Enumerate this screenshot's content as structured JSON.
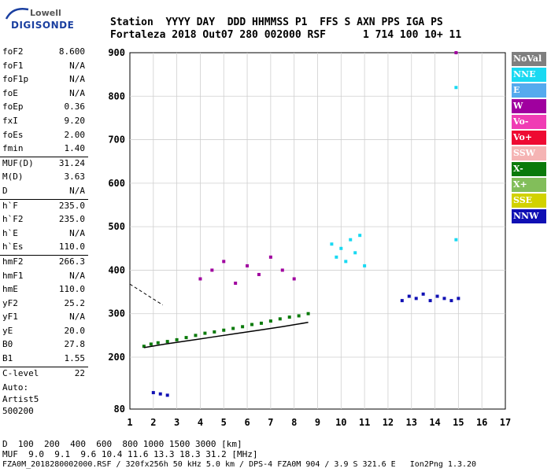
{
  "logo": {
    "line1": "Lowell",
    "line2": "DIGISONDE"
  },
  "header": {
    "row1": [
      "Station",
      "YYYY DAY",
      "DDD HHMMSS",
      "P1",
      "FFS S",
      "AXN",
      "PPS",
      "IGA",
      "PS"
    ],
    "row2": [
      "Fortaleza",
      "2018 Out07",
      "280 002000",
      "RSF",
      "1",
      "714",
      "100",
      "10+",
      "11"
    ]
  },
  "params": [
    {
      "name": "foF2",
      "value": "8.600"
    },
    {
      "name": "foF1",
      "value": "N/A"
    },
    {
      "name": "foF1p",
      "value": "N/A"
    },
    {
      "name": "foE",
      "value": "N/A"
    },
    {
      "name": "foEp",
      "value": "0.36"
    },
    {
      "name": "fxI",
      "value": "9.20"
    },
    {
      "name": "foEs",
      "value": "2.00"
    },
    {
      "name": "fmin",
      "value": "1.40"
    },
    {
      "name": "MUF(D)",
      "value": "31.24",
      "sep": true
    },
    {
      "name": "M(D)",
      "value": "3.63"
    },
    {
      "name": "D",
      "value": "N/A"
    },
    {
      "name": "h`F",
      "value": "235.0",
      "sep": true
    },
    {
      "name": "h`F2",
      "value": "235.0"
    },
    {
      "name": "h`E",
      "value": "N/A"
    },
    {
      "name": "h`Es",
      "value": "110.0"
    },
    {
      "name": "hmF2",
      "value": "266.3",
      "sep": true
    },
    {
      "name": "hmF1",
      "value": "N/A"
    },
    {
      "name": "hmE",
      "value": "110.0"
    },
    {
      "name": "yF2",
      "value": "25.2"
    },
    {
      "name": "yF1",
      "value": "N/A"
    },
    {
      "name": "yE",
      "value": "20.0"
    },
    {
      "name": "B0",
      "value": "27.8"
    },
    {
      "name": "B1",
      "value": "1.55"
    },
    {
      "name": "C-level",
      "value": "22",
      "sep": true
    }
  ],
  "autoscaling": {
    "line1": "Auto:",
    "line2": "Artist5",
    "line3": "500200"
  },
  "legend": [
    {
      "label": "NoVal",
      "color": "#7f7f7f"
    },
    {
      "label": "NNE",
      "color": "#19d9f2"
    },
    {
      "label": "E",
      "color": "#55aaee"
    },
    {
      "label": "W",
      "color": "#a0009f"
    },
    {
      "label": "Vo-",
      "color": "#f03cb4"
    },
    {
      "label": "Vo+",
      "color": "#ee0a32"
    },
    {
      "label": "SSW",
      "color": "#f5b4b4"
    },
    {
      "label": "X-",
      "color": "#0a7a0a"
    },
    {
      "label": "X+",
      "color": "#82be5a"
    },
    {
      "label": "SSE",
      "color": "#d2d200"
    },
    {
      "label": "NNW",
      "color": "#1010b4"
    }
  ],
  "footer": {
    "d_label": "D",
    "d_values": "  100  200  400  600  800 1000 1500 3000 [km]",
    "muf_label": "MUF",
    "muf_values": "  9.0  9.1  9.6 10.4 11.6 13.3 18.3 31.2 [MHz]",
    "info": "FZA0M_2018280002000.RSF / 320fx256h 50 kHz 5.0 km / DPS-4 FZA0M 904 / 3.9 S 321.6 E   Ion2Png 1.3.20"
  },
  "chart_data": {
    "type": "scatter",
    "title": "",
    "xlabel": "",
    "ylabel": "",
    "xlim": [
      1,
      17
    ],
    "ylim": [
      80,
      900
    ],
    "y_scale": "piecewise-linear",
    "x_ticks": [
      1,
      2,
      3,
      4,
      5,
      6,
      7,
      8,
      9,
      10,
      11,
      12,
      13,
      14,
      15,
      16,
      17
    ],
    "y_ticks": [
      80,
      200,
      300,
      400,
      500,
      600,
      700,
      800,
      900
    ],
    "grid": true,
    "legend_position": "right",
    "series": [
      {
        "name": "X-",
        "color": "#0a7a0a",
        "x": [
          1.6,
          1.9,
          2.2,
          2.6,
          3.0,
          3.4,
          3.8,
          4.2,
          4.6,
          5.0,
          5.4,
          5.8,
          6.2,
          6.6,
          7.0,
          7.4,
          7.8,
          8.2,
          8.6
        ],
        "y": [
          225,
          230,
          233,
          236,
          240,
          245,
          250,
          255,
          258,
          262,
          266,
          270,
          275,
          278,
          283,
          288,
          292,
          295,
          300
        ]
      },
      {
        "name": "NNW",
        "color": "#1010b4",
        "x": [
          12.6,
          12.9,
          13.2,
          13.5,
          13.8,
          14.1,
          14.4,
          14.7,
          15.0,
          2.0,
          2.3,
          2.6
        ],
        "y": [
          330,
          340,
          335,
          345,
          330,
          340,
          335,
          330,
          335,
          118,
          115,
          112
        ]
      },
      {
        "name": "NNE",
        "color": "#19d9f2",
        "x": [
          9.6,
          9.8,
          10.0,
          10.2,
          10.4,
          10.6,
          10.8,
          11.0,
          14.9,
          14.9
        ],
        "y": [
          460,
          430,
          450,
          420,
          470,
          440,
          480,
          410,
          820,
          470
        ]
      },
      {
        "name": "W",
        "color": "#a0009f",
        "x": [
          4.0,
          4.5,
          5.0,
          5.5,
          6.0,
          6.5,
          7.0,
          7.5,
          8.0,
          14.9
        ],
        "y": [
          380,
          400,
          420,
          370,
          410,
          390,
          430,
          400,
          380,
          900
        ]
      }
    ],
    "fitted_profile": {
      "x": [
        1.6,
        2.5,
        3.5,
        4.5,
        5.5,
        6.5,
        7.5,
        8.6
      ],
      "y": [
        222,
        230,
        238,
        246,
        254,
        262,
        270,
        280
      ]
    },
    "oblique_line": {
      "x": [
        1.0,
        2.4
      ],
      "y": [
        368,
        320
      ]
    }
  }
}
